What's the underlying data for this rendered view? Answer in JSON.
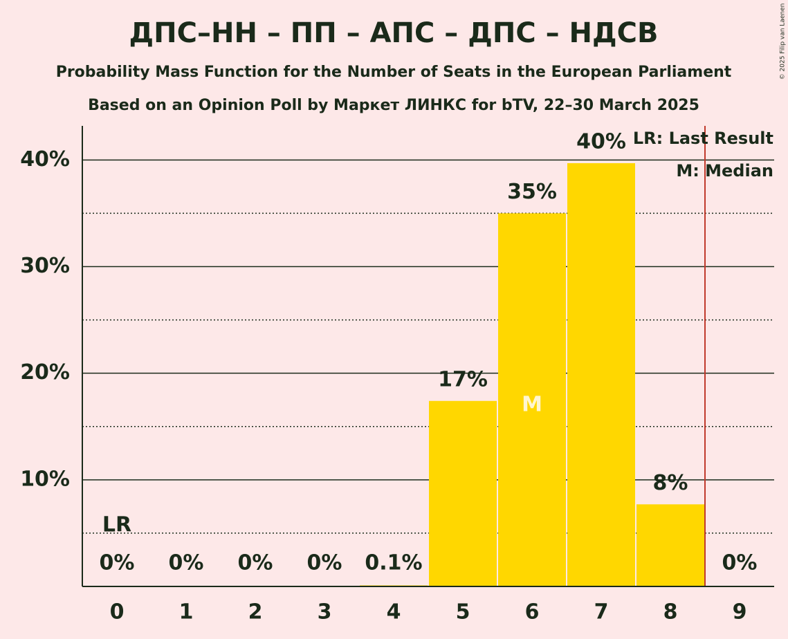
{
  "chart_data": {
    "type": "bar",
    "title": "ДПС–НН – ПП – АПС – ДПС – НДСВ",
    "subtitle": "Probability Mass Function for the Number of Seats in the European Parliament",
    "subtitle2": "Based on an Opinion Poll by Маркет ЛИНКС for bTV, 22–30 March 2025",
    "copyright": "© 2025 Filip van Laenen",
    "categories": [
      "0",
      "1",
      "2",
      "3",
      "4",
      "5",
      "6",
      "7",
      "8",
      "9"
    ],
    "values": [
      0,
      0,
      0,
      0,
      0.1,
      17.4,
      35,
      39.7,
      7.7,
      0
    ],
    "value_labels": [
      "0%",
      "0%",
      "0%",
      "0%",
      "0.1%",
      "17%",
      "35%",
      "40%",
      "8%",
      "0%"
    ],
    "color": "#ffd700",
    "ylim": [
      0,
      43.2
    ],
    "yticks": [
      {
        "value": 10,
        "label": "10%"
      },
      {
        "value": 20,
        "label": "20%"
      },
      {
        "value": 30,
        "label": "30%"
      },
      {
        "value": 40,
        "label": "40%"
      }
    ],
    "minor_yticks": [
      5,
      15,
      25,
      35
    ],
    "grid": true,
    "last_result": {
      "category": 0,
      "label": "LR"
    },
    "median": {
      "category": 6,
      "label": "M"
    },
    "threshold_line": {
      "x": 8.5,
      "color": "#c0392b"
    },
    "legend": [
      "LR: Last Result",
      "M: Median"
    ],
    "legend_position": "top-right"
  }
}
